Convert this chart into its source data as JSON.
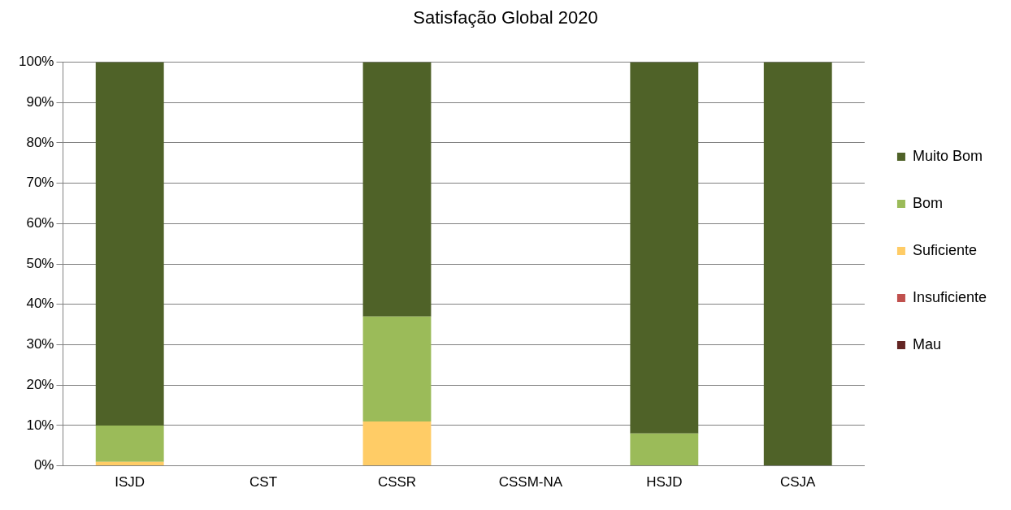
{
  "chart_data": {
    "type": "bar",
    "title": "Satisfação Global 2020",
    "stacked": true,
    "grid": "y",
    "legend": "right",
    "categories": [
      "ISJD",
      "CST",
      "CSSR",
      "CSSM-NA",
      "HSJD",
      "CSJA"
    ],
    "ylim": [
      0,
      100
    ],
    "yticks": [
      {
        "value": 0,
        "label": "0%"
      },
      {
        "value": 10,
        "label": "10%"
      },
      {
        "value": 20,
        "label": "20%"
      },
      {
        "value": 30,
        "label": "30%"
      },
      {
        "value": 40,
        "label": "40%"
      },
      {
        "value": 50,
        "label": "50%"
      },
      {
        "value": 60,
        "label": "60%"
      },
      {
        "value": 70,
        "label": "70%"
      },
      {
        "value": 80,
        "label": "80%"
      },
      {
        "value": 90,
        "label": "90%"
      },
      {
        "value": 100,
        "label": "100%"
      }
    ],
    "series": [
      {
        "name": "Mau",
        "color": "#632523",
        "values": [
          0,
          null,
          0,
          null,
          0,
          0
        ]
      },
      {
        "name": "Insuficiente",
        "color": "#c0504d",
        "values": [
          0,
          null,
          0,
          null,
          0,
          0
        ]
      },
      {
        "name": "Suficiente",
        "color": "#ffcc66",
        "values": [
          1,
          null,
          11,
          null,
          0,
          0
        ]
      },
      {
        "name": "Bom",
        "color": "#9bbb59",
        "values": [
          9,
          null,
          26,
          null,
          8,
          0
        ]
      },
      {
        "name": "Muito Bom",
        "color": "#4f6228",
        "values": [
          90,
          null,
          63,
          null,
          92,
          100
        ]
      }
    ]
  }
}
